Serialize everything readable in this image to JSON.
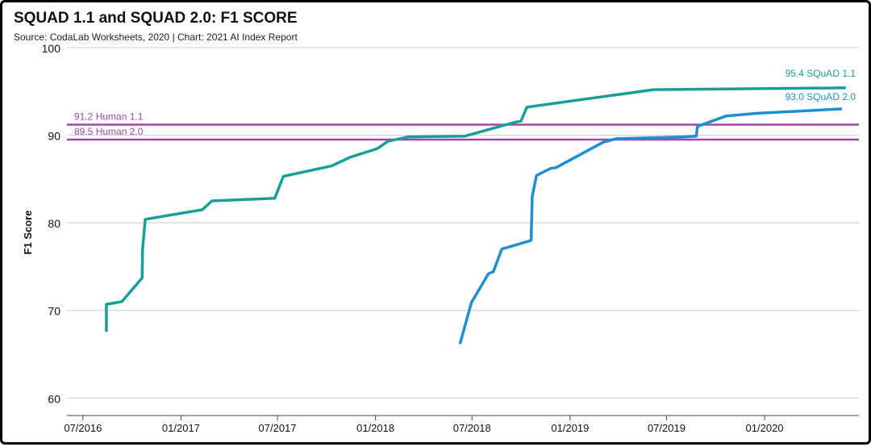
{
  "chart_data": {
    "type": "line",
    "title": "SQUAD 1.1 and SQUAD 2.0: F1 SCORE",
    "subtitle": "Source: CodaLab Worksheets, 2020 | Chart: 2021 AI Index Report",
    "xlabel": "",
    "ylabel": "F1 Score",
    "x_type": "date",
    "xlim": [
      "2016-06-01",
      "2020-06-26"
    ],
    "ylim": [
      58,
      100
    ],
    "y_ticks": [
      60,
      70,
      80,
      90,
      100
    ],
    "x_ticks": [
      {
        "date": "2016-07-01",
        "label": "07/2016"
      },
      {
        "date": "2017-01-01",
        "label": "01/2017"
      },
      {
        "date": "2017-07-01",
        "label": "07/2017"
      },
      {
        "date": "2018-01-01",
        "label": "01/2018"
      },
      {
        "date": "2018-07-01",
        "label": "07/2018"
      },
      {
        "date": "2019-01-01",
        "label": "01/2019"
      },
      {
        "date": "2019-07-01",
        "label": "07/2019"
      },
      {
        "date": "2020-01-01",
        "label": "01/2020"
      }
    ],
    "grid": true,
    "series": [
      {
        "name": "SQuAD 1.1",
        "color": "#1a9e9a",
        "end_label": "95.4 SQuAD 1.1",
        "points": [
          [
            "2016-08-14",
            67.7
          ],
          [
            "2016-08-14",
            70.7
          ],
          [
            "2016-09-12",
            71.0
          ],
          [
            "2016-10-20",
            73.7
          ],
          [
            "2016-10-21",
            77.0
          ],
          [
            "2016-10-26",
            80.4
          ],
          [
            "2017-02-10",
            81.5
          ],
          [
            "2017-02-28",
            82.5
          ],
          [
            "2017-06-26",
            82.8
          ],
          [
            "2017-07-12",
            85.3
          ],
          [
            "2017-10-11",
            86.5
          ],
          [
            "2017-11-15",
            87.5
          ],
          [
            "2017-12-27",
            88.3
          ],
          [
            "2018-01-05",
            88.5
          ],
          [
            "2018-01-24",
            89.3
          ],
          [
            "2018-03-03",
            89.8
          ],
          [
            "2018-06-18",
            89.9
          ],
          [
            "2018-09-21",
            91.5
          ],
          [
            "2018-10-01",
            91.6
          ],
          [
            "2018-10-12",
            93.2
          ],
          [
            "2019-06-07",
            95.2
          ],
          [
            "2020-05-30",
            95.4
          ]
        ]
      },
      {
        "name": "SQuAD 2.0",
        "color": "#1e8fd0",
        "end_label": "93.0 SQuAD 2.0",
        "points": [
          [
            "2018-06-09",
            66.3
          ],
          [
            "2018-06-30",
            70.9
          ],
          [
            "2018-08-01",
            74.2
          ],
          [
            "2018-08-10",
            74.4
          ],
          [
            "2018-08-26",
            77.0
          ],
          [
            "2018-10-20",
            78.0
          ],
          [
            "2018-10-22",
            83.0
          ],
          [
            "2018-10-30",
            85.4
          ],
          [
            "2018-11-25",
            86.2
          ],
          [
            "2018-12-06",
            86.3
          ],
          [
            "2019-03-04",
            89.2
          ],
          [
            "2019-03-29",
            89.6
          ],
          [
            "2019-08-01",
            89.8
          ],
          [
            "2019-08-26",
            89.9
          ],
          [
            "2019-08-28",
            91.0
          ],
          [
            "2019-10-21",
            92.2
          ],
          [
            "2019-12-19",
            92.5
          ],
          [
            "2020-05-23",
            93.0
          ]
        ]
      }
    ],
    "reference_lines": [
      {
        "label": "91.2 Human 1.1",
        "value": 91.2,
        "color": "#a347a6"
      },
      {
        "label": "89.5 Human 2.0",
        "value": 89.5,
        "color": "#a347a6"
      }
    ]
  }
}
